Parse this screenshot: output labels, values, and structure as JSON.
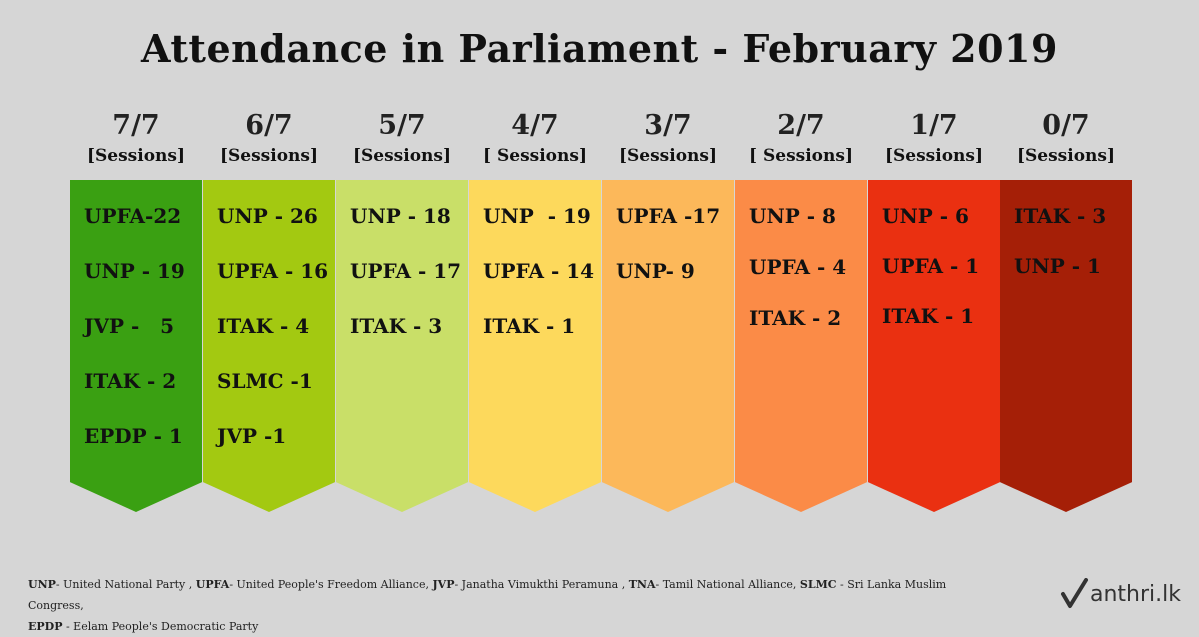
{
  "title": "Attendance in Parliament - February  2019",
  "columns": [
    {
      "fraction": "7/7",
      "label": "[Sessions]",
      "color": "#3aa012",
      "gap": "55",
      "items": [
        "UPFA-22",
        "UNP - 19",
        "JVP -   5",
        "ITAK - 2",
        "EPDP - 1"
      ]
    },
    {
      "fraction": "6/7",
      "label": "[Sessions]",
      "color": "#a3c911",
      "gap": "55",
      "items": [
        "UNP - 26",
        "UPFA - 16",
        "ITAK - 4",
        "SLMC -1",
        "JVP -1"
      ]
    },
    {
      "fraction": "5/7",
      "label": "[Sessions]",
      "color": "#c9df68",
      "gap": "55",
      "items": [
        "UNP - 18",
        "UPFA - 17",
        "ITAK - 3"
      ]
    },
    {
      "fraction": "4/7",
      "label": "[ Sessions]",
      "color": "#fdd95c",
      "gap": "55",
      "items": [
        "UNP  - 19",
        "UPFA - 14",
        "ITAK - 1"
      ]
    },
    {
      "fraction": "3/7",
      "label": "[Sessions]",
      "color": "#fcb85a",
      "gap": "55",
      "items": [
        "UPFA -17",
        "UNP- 9"
      ]
    },
    {
      "fraction": "2/7",
      "label": "[ Sessions]",
      "color": "#fb8b47",
      "gap": "51",
      "items": [
        "UNP - 8",
        "UPFA - 4",
        "ITAK - 2"
      ]
    },
    {
      "fraction": "1/7",
      "label": "[Sessions]",
      "color": "#ea3011",
      "gap": "50",
      "items": [
        "UNP - 6",
        "UPFA - 1",
        "ITAK - 1"
      ]
    },
    {
      "fraction": "0/7",
      "label": "[Sessions]",
      "color": "#a51f07",
      "gap": "50",
      "items": [
        "ITAK - 3",
        "UNP - 1"
      ]
    }
  ],
  "legend": {
    "line1": [
      {
        "abbr": "UNP",
        "desc": "- United National Party , "
      },
      {
        "abbr": "UPFA",
        "desc": "- United People's Freedom Alliance, "
      },
      {
        "abbr": "JVP",
        "desc": "- Janatha Vimukthi Peramuna , "
      },
      {
        "abbr": "TNA",
        "desc": "- Tamil National Alliance, "
      },
      {
        "abbr": "SLMC",
        "desc": " - Sri Lanka Muslim Congress,"
      }
    ],
    "line2": [
      {
        "abbr": "EPDP",
        "desc": " - Eelam People's Democratic Party"
      }
    ]
  },
  "logo": {
    "text": "anthri.lk"
  }
}
